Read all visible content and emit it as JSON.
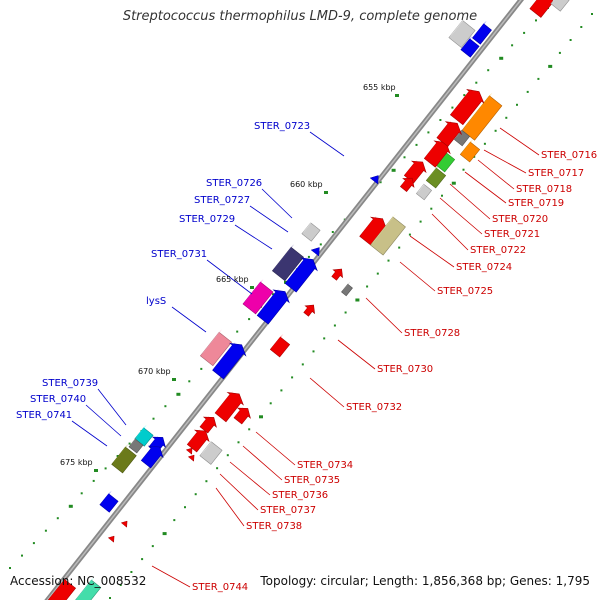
{
  "map": {
    "title": "Streptococcus thermophilus LMD-9, complete genome",
    "accession_text": "Accession: NC_008532",
    "summary_text": "Topology: circular; Length: 1,856,368 bp; Genes: 1,795",
    "colors": {
      "backbone": "#888888",
      "ruler_ticks": "#228b22",
      "positive_labels": "#0000cc",
      "negative_labels": "#cc0000",
      "kbp_labels": "#111111"
    },
    "kbp_labels": [
      "655 kbp",
      "660 kbp",
      "665 kbp",
      "670 kbp",
      "675 kbp"
    ],
    "plus_strand_genes": [
      {
        "label": "STER_0723",
        "color": "#0000ee",
        "shape": "arrow-head"
      },
      {
        "label": "STER_0726",
        "color": "#cccccc",
        "shape": "block"
      },
      {
        "label": "STER_0727",
        "color": "#0000ee",
        "shape": "arrow-head"
      },
      {
        "label": "STER_0729",
        "color": "#3b3570",
        "shape": "block"
      },
      {
        "label": "STER_0731",
        "color": "#ee00aa",
        "shape": "block"
      },
      {
        "label": "lysS",
        "color": "#ee8899",
        "shape": "block"
      },
      {
        "label": "STER_0739",
        "color": "#00cccc",
        "shape": "block"
      },
      {
        "label": "STER_0740",
        "color": "#777777",
        "shape": "block"
      },
      {
        "label": "STER_0741",
        "color": "#6b7a1a",
        "shape": "block"
      }
    ],
    "minus_strand_genes": [
      {
        "label": "STER_0716",
        "color": "#ff8800",
        "shape": "block"
      },
      {
        "label": "STER_0717",
        "color": "#777777",
        "shape": "block"
      },
      {
        "label": "STER_0718",
        "color": "#ff8800",
        "shape": "block"
      },
      {
        "label": "STER_0719",
        "color": "#33cc33",
        "shape": "block"
      },
      {
        "label": "STER_0720",
        "color": "#6b8e23",
        "shape": "block"
      },
      {
        "label": "STER_0721",
        "color": "#cccccc",
        "shape": "block"
      },
      {
        "label": "STER_0722",
        "color": "#ee0000",
        "shape": "arrow"
      },
      {
        "label": "STER_0724",
        "color": "#ee0000",
        "shape": "arrow"
      },
      {
        "label": "STER_0725",
        "color": "#c8c088",
        "shape": "block"
      },
      {
        "label": "STER_0728",
        "color": "#777777",
        "shape": "block"
      },
      {
        "label": "STER_0730",
        "color": "#ee0000",
        "shape": "arrow-head"
      },
      {
        "label": "STER_0732",
        "color": "#ee0000",
        "shape": "arrow"
      },
      {
        "label": "STER_0734",
        "color": "#ee0000",
        "shape": "arrow"
      },
      {
        "label": "STER_0735",
        "color": "#ee0000",
        "shape": "arrow"
      },
      {
        "label": "STER_0736",
        "color": "#cccccc",
        "shape": "block"
      },
      {
        "label": "STER_0737",
        "color": "#ee0000",
        "shape": "arrow-head"
      },
      {
        "label": "STER_0738",
        "color": "#ee0000",
        "shape": "arrow-head"
      },
      {
        "label": "STER_0744",
        "color": "#ee0000",
        "shape": "arrow-head"
      }
    ]
  }
}
